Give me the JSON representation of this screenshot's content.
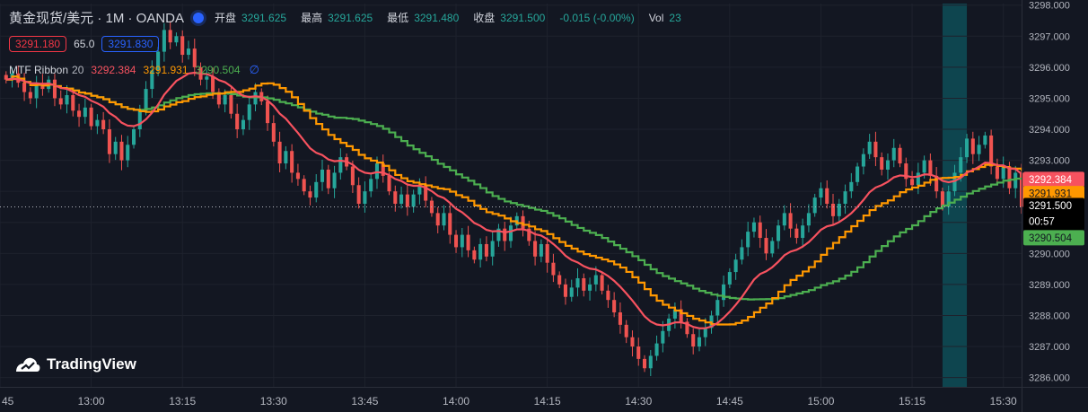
{
  "header": {
    "symbol": "黄金现货/美元 · 1M · OANDA",
    "open_label": "开盘",
    "open": "3291.625",
    "high_label": "最高",
    "high": "3291.625",
    "low_label": "最低",
    "low": "3291.480",
    "close_label": "收盘",
    "close": "3291.500",
    "change": "-0.015 (-0.00%)",
    "vol_label": "Vol",
    "vol": "23"
  },
  "trade": {
    "sell": "3291.180",
    "spread": "65.0",
    "buy": "3291.830"
  },
  "indicator": {
    "name": "MTF Ribbon",
    "length": "20",
    "v1": "3292.384",
    "v2": "3291.931",
    "v3": "3290.504",
    "hide_symbol": "∅"
  },
  "logo": {
    "text": "TradingView"
  },
  "colors": {
    "up": "#26a69a",
    "down": "#ef5350",
    "ribbon_fast": "#f7525f",
    "ribbon_mid": "#ff9800",
    "ribbon_slow": "#4caf50",
    "highlight": "#0e4d57",
    "background": "#131722"
  },
  "chart_data": {
    "type": "candlestick",
    "y_range": [
      3285.7,
      3298.05
    ],
    "x_range": [
      "12:45",
      "15:33"
    ],
    "y_ticks": [
      "3298.000",
      "3297.000",
      "3296.000",
      "3295.000",
      "3294.000",
      "3293.000",
      "3292.000",
      "3291.000",
      "3290.000",
      "3289.000",
      "3288.000",
      "3287.000",
      "3286.000"
    ],
    "x_ticks": [
      "45",
      "13:00",
      "13:15",
      "13:30",
      "13:45",
      "14:00",
      "14:15",
      "14:30",
      "14:45",
      "15:00",
      "15:15",
      "15:30"
    ],
    "price_labels": {
      "fast": "3292.384",
      "mid": "3291.931",
      "last": "3291.500",
      "countdown": "00:57",
      "slow": "3290.504"
    },
    "last_price": 3291.5,
    "highlight_range": [
      "15:20",
      "15:24"
    ],
    "candles_close": [
      3295.6,
      3295.8,
      3295.5,
      3295.2,
      3295.0,
      3295.5,
      3295.3,
      3295.6,
      3295.0,
      3294.8,
      3295.1,
      3294.6,
      3294.4,
      3294.7,
      3294.1,
      3294.3,
      3294.0,
      3293.2,
      3293.6,
      3293.0,
      3293.5,
      3294.0,
      3294.6,
      3295.3,
      3295.9,
      3296.5,
      3297.2,
      3296.8,
      3297.0,
      3296.4,
      3296.6,
      3296.0,
      3295.6,
      3295.7,
      3295.2,
      3294.8,
      3295.1,
      3294.5,
      3294.0,
      3294.3,
      3294.8,
      3295.2,
      3294.9,
      3294.2,
      3293.6,
      3292.9,
      3293.3,
      3292.6,
      3292.4,
      3292.0,
      3291.8,
      3292.3,
      3292.7,
      3292.1,
      3292.6,
      3293.1,
      3292.8,
      3292.2,
      3291.6,
      3292.0,
      3292.4,
      3292.9,
      3292.5,
      3292.0,
      3291.6,
      3291.9,
      3291.5,
      3291.9,
      3292.2,
      3291.7,
      3291.3,
      3290.9,
      3291.3,
      3290.6,
      3290.2,
      3290.6,
      3290.1,
      3289.8,
      3290.3,
      3289.9,
      3290.4,
      3290.8,
      3290.4,
      3290.9,
      3291.2,
      3290.8,
      3290.4,
      3289.9,
      3290.3,
      3289.7,
      3289.3,
      3289.0,
      3288.6,
      3288.9,
      3289.2,
      3288.8,
      3289.0,
      3289.3,
      3288.8,
      3288.5,
      3288.1,
      3287.7,
      3287.3,
      3287.0,
      3286.6,
      3286.3,
      3286.7,
      3287.1,
      3287.5,
      3287.9,
      3288.2,
      3287.8,
      3287.4,
      3287.0,
      3287.3,
      3287.6,
      3288.0,
      3288.5,
      3289.0,
      3289.4,
      3289.8,
      3290.2,
      3290.7,
      3291.0,
      3290.5,
      3290.0,
      3290.4,
      3290.9,
      3291.3,
      3290.8,
      3290.5,
      3290.9,
      3291.3,
      3291.8,
      3292.1,
      3291.6,
      3291.2,
      3291.6,
      3292.0,
      3292.3,
      3292.8,
      3293.2,
      3293.6,
      3293.1,
      3292.7,
      3293.0,
      3293.4,
      3292.9,
      3292.4,
      3292.2,
      3292.6,
      3293.0,
      3292.5,
      3292.0,
      3291.5,
      3292.0,
      3292.6,
      3293.1,
      3293.7,
      3293.2,
      3293.5,
      3293.8,
      3292.8,
      3292.4,
      3292.8,
      3292.1,
      3292.6,
      3291.5
    ]
  }
}
